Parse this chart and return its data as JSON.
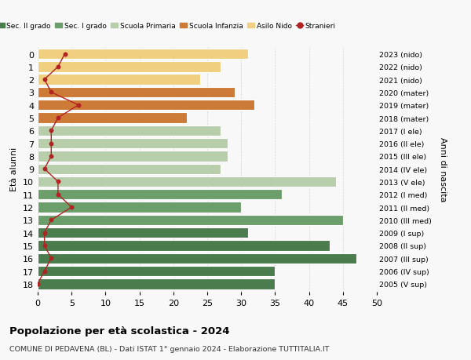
{
  "ages": [
    18,
    17,
    16,
    15,
    14,
    13,
    12,
    11,
    10,
    9,
    8,
    7,
    6,
    5,
    4,
    3,
    2,
    1,
    0
  ],
  "years": [
    "2005 (V sup)",
    "2006 (IV sup)",
    "2007 (III sup)",
    "2008 (II sup)",
    "2009 (I sup)",
    "2010 (III med)",
    "2011 (II med)",
    "2012 (I med)",
    "2013 (V ele)",
    "2014 (IV ele)",
    "2015 (III ele)",
    "2016 (II ele)",
    "2017 (I ele)",
    "2018 (mater)",
    "2019 (mater)",
    "2020 (mater)",
    "2021 (nido)",
    "2022 (nido)",
    "2023 (nido)"
  ],
  "bar_values": [
    35,
    35,
    47,
    43,
    31,
    45,
    30,
    36,
    44,
    27,
    28,
    28,
    27,
    22,
    32,
    29,
    24,
    27,
    31
  ],
  "bar_colors": [
    "#4a7c4e",
    "#4a7c4e",
    "#4a7c4e",
    "#4a7c4e",
    "#4a7c4e",
    "#6b9e6b",
    "#6b9e6b",
    "#6b9e6b",
    "#b8ceaa",
    "#b8ceaa",
    "#b8ceaa",
    "#b8ceaa",
    "#b8ceaa",
    "#cc7a35",
    "#cc7a35",
    "#cc7a35",
    "#f0d080",
    "#f0d080",
    "#f0d080"
  ],
  "stranieri_values": [
    0,
    1,
    2,
    1,
    1,
    2,
    5,
    3,
    3,
    1,
    2,
    2,
    2,
    3,
    6,
    2,
    1,
    3,
    4
  ],
  "stranieri_color": "#b22222",
  "legend_labels": [
    "Sec. II grado",
    "Sec. I grado",
    "Scuola Primaria",
    "Scuola Infanzia",
    "Asilo Nido",
    "Stranieri"
  ],
  "legend_colors": [
    "#4a7c4e",
    "#6b9e6b",
    "#b8ceaa",
    "#cc7a35",
    "#f0d080",
    "#b22222"
  ],
  "ylabel_left": "Età alunni",
  "ylabel_right": "Anni di nascita",
  "title": "Popolazione per età scolastica - 2024",
  "subtitle": "COMUNE DI PEDAVENA (BL) - Dati ISTAT 1° gennaio 2024 - Elaborazione TUTTITALIA.IT",
  "xlim": [
    0,
    50
  ],
  "xticks": [
    0,
    5,
    10,
    15,
    20,
    25,
    30,
    35,
    40,
    45,
    50
  ],
  "bg_color": "#f8f8f8",
  "grid_color": "#cccccc"
}
